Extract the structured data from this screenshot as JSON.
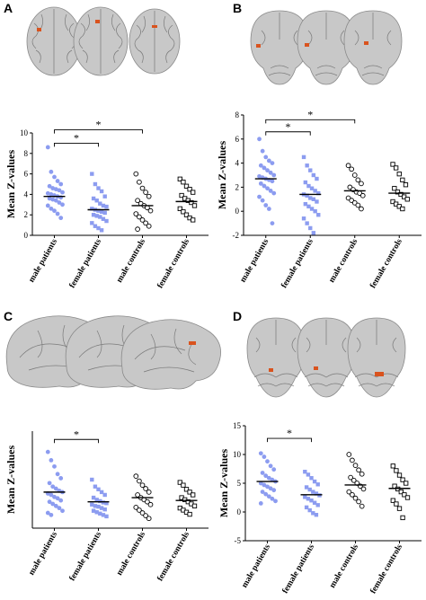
{
  "panels": [
    {
      "letter": "A",
      "view": "axial"
    },
    {
      "letter": "B",
      "view": "coronal"
    },
    {
      "letter": "C",
      "view": "sagittal"
    },
    {
      "letter": "D",
      "view": "coronal-posterior"
    }
  ],
  "colors": {
    "patients": "#8c9cf0",
    "controls": "#000000",
    "activation": "#d9531e"
  },
  "chart_data": [
    {
      "panel": "A",
      "type": "scatter",
      "ylabel": "Mean Z-values",
      "categories": [
        "male patients",
        "female patients",
        "male controls",
        "female controls"
      ],
      "ylim": [
        0,
        10
      ],
      "yticks": [
        0,
        2,
        4,
        6,
        8,
        10
      ],
      "means": [
        3.8,
        2.5,
        2.9,
        3.3
      ],
      "series": [
        {
          "category": "male patients",
          "marker": "circle",
          "values": [
            8.6,
            6.2,
            5.7,
            5.3,
            5.0,
            4.8,
            4.6,
            4.5,
            4.4,
            4.2,
            4.1,
            4.0,
            3.9,
            3.8,
            3.7,
            3.6,
            3.5,
            3.4,
            3.2,
            3.0,
            2.9,
            2.6,
            2.4,
            2.1,
            1.7
          ]
        },
        {
          "category": "female patients",
          "marker": "square",
          "values": [
            6.0,
            5.0,
            4.6,
            4.3,
            3.8,
            3.6,
            3.4,
            3.1,
            2.9,
            2.8,
            2.6,
            2.5,
            2.4,
            2.3,
            2.2,
            2.0,
            1.9,
            1.8,
            1.6,
            1.4,
            1.2,
            0.9,
            0.7,
            0.5
          ]
        },
        {
          "category": "male controls",
          "marker": "open-circle",
          "values": [
            6.0,
            5.2,
            4.6,
            4.2,
            3.8,
            3.4,
            3.1,
            2.9,
            2.7,
            2.4,
            2.1,
            1.8,
            1.5,
            1.2,
            0.9,
            0.6
          ]
        },
        {
          "category": "female controls",
          "marker": "open-square",
          "values": [
            5.5,
            5.2,
            4.8,
            4.5,
            4.2,
            3.9,
            3.6,
            3.4,
            3.2,
            2.9,
            2.6,
            2.3,
            2.0,
            1.7,
            1.5
          ]
        }
      ],
      "significance": [
        {
          "from": 0,
          "to": 2,
          "label": "*",
          "y": 10.3
        },
        {
          "from": 0,
          "to": 1,
          "label": "*",
          "y": 9.0
        }
      ]
    },
    {
      "panel": "B",
      "type": "scatter",
      "ylabel": "Mean Z-values",
      "categories": [
        "male patients",
        "female patients",
        "male controls",
        "female controls"
      ],
      "ylim": [
        -2,
        8
      ],
      "yticks": [
        -2,
        0,
        2,
        4,
        6,
        8
      ],
      "means": [
        2.7,
        1.4,
        1.7,
        1.5
      ],
      "series": [
        {
          "category": "male patients",
          "marker": "circle",
          "values": [
            6.0,
            5.0,
            4.5,
            4.2,
            4.0,
            3.8,
            3.6,
            3.4,
            3.2,
            3.0,
            2.9,
            2.8,
            2.7,
            2.6,
            2.5,
            2.3,
            2.1,
            1.9,
            1.7,
            1.5,
            1.2,
            0.9,
            0.5,
            0.2,
            -1.0
          ]
        },
        {
          "category": "female patients",
          "marker": "square",
          "values": [
            4.5,
            3.8,
            3.4,
            3.0,
            2.7,
            2.4,
            2.1,
            1.9,
            1.7,
            1.5,
            1.4,
            1.3,
            1.1,
            1.0,
            0.8,
            0.6,
            0.4,
            0.2,
            0.0,
            -0.3,
            -0.6,
            -1.0,
            -1.4,
            -1.8
          ]
        },
        {
          "category": "male controls",
          "marker": "open-circle",
          "values": [
            3.8,
            3.5,
            3.0,
            2.6,
            2.3,
            2.0,
            1.8,
            1.6,
            1.5,
            1.3,
            1.1,
            0.9,
            0.7,
            0.5,
            0.2
          ]
        },
        {
          "category": "female controls",
          "marker": "open-square",
          "values": [
            3.9,
            3.6,
            3.1,
            2.6,
            2.2,
            1.9,
            1.6,
            1.4,
            1.2,
            1.0,
            0.8,
            0.6,
            0.4,
            0.2
          ]
        }
      ],
      "significance": [
        {
          "from": 0,
          "to": 2,
          "label": "*",
          "y": 7.6
        },
        {
          "from": 0,
          "to": 1,
          "label": "*",
          "y": 6.6
        }
      ]
    },
    {
      "panel": "C",
      "type": "scatter",
      "ylabel": "Mean Z-values",
      "categories": [
        "male patients",
        "female patients",
        "male controls",
        "female controls"
      ],
      "ylim": [
        0,
        14
      ],
      "yticks": [],
      "means": [
        5.2,
        3.8,
        4.4,
        4.0
      ],
      "series": [
        {
          "category": "male patients",
          "marker": "circle",
          "values": [
            11.0,
            9.8,
            8.9,
            7.8,
            7.2,
            6.5,
            6.0,
            5.7,
            5.4,
            5.2,
            5.0,
            4.8,
            4.5,
            4.3,
            4.0,
            3.8,
            3.5,
            3.2,
            2.9,
            2.5,
            2.2,
            1.9
          ]
        },
        {
          "category": "female patients",
          "marker": "square",
          "values": [
            7.0,
            6.0,
            5.6,
            5.2,
            4.8,
            4.4,
            4.1,
            3.9,
            3.7,
            3.6,
            3.4,
            3.2,
            3.1,
            2.9,
            2.7,
            2.5,
            2.3,
            2.1,
            1.9,
            1.7
          ]
        },
        {
          "category": "male controls",
          "marker": "open-circle",
          "values": [
            7.5,
            6.8,
            6.2,
            5.7,
            5.2,
            4.8,
            4.4,
            4.1,
            3.8,
            3.4,
            3.0,
            2.6,
            2.2,
            1.8,
            1.4
          ]
        },
        {
          "category": "female controls",
          "marker": "open-square",
          "values": [
            6.6,
            6.2,
            5.6,
            5.2,
            4.8,
            4.4,
            4.1,
            3.8,
            3.5,
            3.2,
            2.9,
            2.6,
            2.3,
            2.0
          ]
        }
      ],
      "significance": [
        {
          "from": 0,
          "to": 1,
          "label": "*",
          "y": 12.8
        }
      ]
    },
    {
      "panel": "D",
      "type": "scatter",
      "ylabel": "Mean Z-values",
      "categories": [
        "male patients",
        "female patients",
        "male controls",
        "female controls"
      ],
      "ylim": [
        -5,
        15
      ],
      "yticks": [
        -5,
        0,
        5,
        10,
        15
      ],
      "means": [
        5.3,
        3.0,
        4.7,
        4.1
      ],
      "series": [
        {
          "category": "male patients",
          "marker": "circle",
          "values": [
            10.2,
            9.6,
            8.8,
            8.0,
            7.4,
            6.8,
            6.3,
            5.9,
            5.6,
            5.3,
            5.0,
            4.7,
            4.4,
            4.1,
            3.8,
            3.5,
            3.1,
            2.7,
            2.3,
            1.9,
            1.5
          ]
        },
        {
          "category": "female patients",
          "marker": "square",
          "values": [
            7.0,
            6.5,
            5.9,
            5.3,
            4.8,
            4.3,
            3.9,
            3.5,
            3.2,
            2.9,
            2.6,
            2.3,
            2.0,
            1.6,
            1.2,
            0.8,
            0.3,
            -0.2,
            -0.5
          ]
        },
        {
          "category": "male controls",
          "marker": "open-circle",
          "values": [
            10.0,
            9.0,
            8.1,
            7.3,
            6.6,
            6.0,
            5.5,
            5.0,
            4.5,
            4.0,
            3.5,
            3.0,
            2.4,
            1.8,
            1.0
          ]
        },
        {
          "category": "female controls",
          "marker": "open-square",
          "values": [
            8.0,
            7.2,
            6.4,
            5.6,
            5.0,
            4.5,
            4.0,
            3.5,
            3.0,
            2.5,
            2.0,
            1.4,
            0.6,
            -1.0
          ]
        }
      ],
      "significance": [
        {
          "from": 0,
          "to": 1,
          "label": "*",
          "y": 12.8
        }
      ]
    }
  ]
}
